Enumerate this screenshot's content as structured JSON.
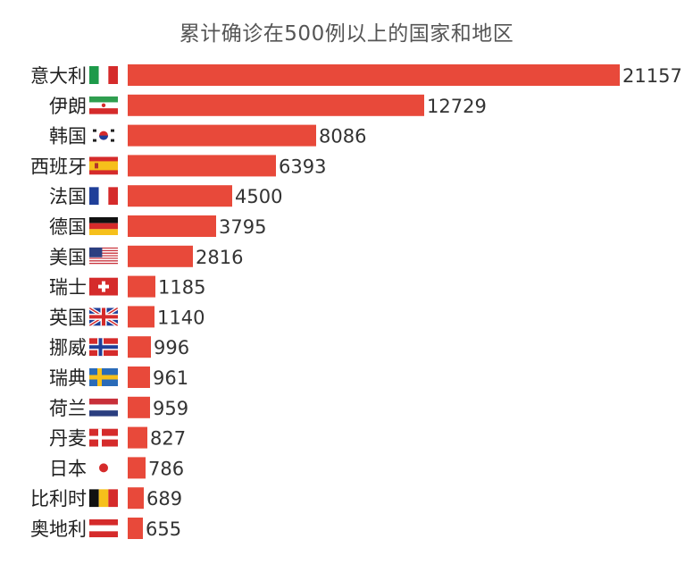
{
  "chart_data": {
    "type": "bar",
    "orientation": "horizontal",
    "title": "累计确诊在500例以上的国家和地区",
    "categories": [
      "意大利",
      "伊朗",
      "韩国",
      "西班牙",
      "法国",
      "德国",
      "美国",
      "瑞士",
      "英国",
      "挪威",
      "瑞典",
      "荷兰",
      "丹麦",
      "日本",
      "比利时",
      "奥地利"
    ],
    "values": [
      21157,
      12729,
      8086,
      6393,
      4500,
      3795,
      2816,
      1185,
      1140,
      996,
      961,
      959,
      827,
      786,
      689,
      655
    ],
    "flags": [
      "italy-flag",
      "iran-flag",
      "south-korea-flag",
      "spain-flag",
      "france-flag",
      "germany-flag",
      "usa-flag",
      "switzerland-flag",
      "uk-flag",
      "norway-flag",
      "sweden-flag",
      "netherlands-flag",
      "denmark-flag",
      "japan-flag",
      "belgium-flag",
      "austria-flag"
    ],
    "bar_color": "#e8493a",
    "xlabel": "",
    "ylabel": "",
    "grid": false,
    "legend": "none"
  }
}
